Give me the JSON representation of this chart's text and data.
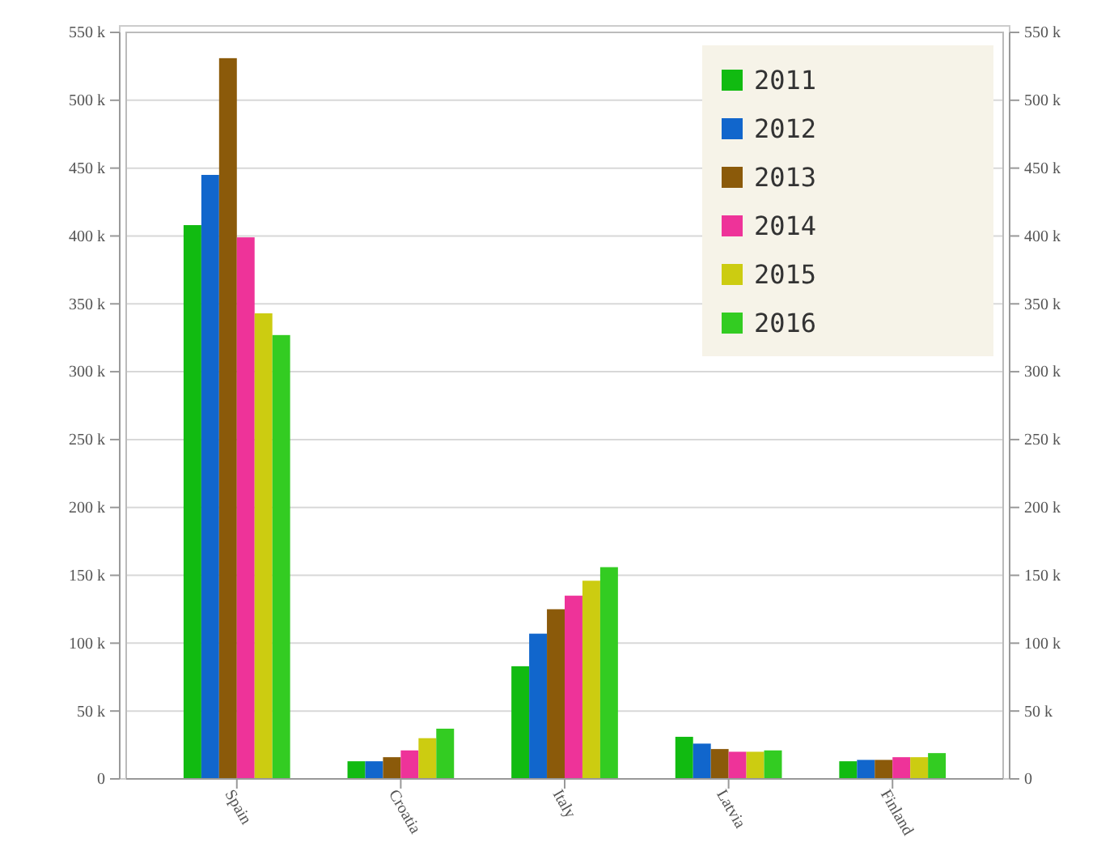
{
  "chart_data": {
    "type": "bar",
    "categories": [
      "Spain",
      "Croatia",
      "Italy",
      "Latvia",
      "Finland"
    ],
    "series": [
      {
        "name": "2011",
        "color": "#11bb11",
        "values": [
          408,
          13,
          83,
          31,
          13
        ]
      },
      {
        "name": "2012",
        "color": "#1166cc",
        "values": [
          445,
          13,
          107,
          26,
          14
        ]
      },
      {
        "name": "2013",
        "color": "#8b5a0a",
        "values": [
          531,
          16,
          125,
          22,
          14
        ]
      },
      {
        "name": "2014",
        "color": "#ee3399",
        "values": [
          399,
          21,
          135,
          20,
          16
        ]
      },
      {
        "name": "2015",
        "color": "#cccc11",
        "values": [
          343,
          30,
          146,
          20,
          16
        ]
      },
      {
        "name": "2016",
        "color": "#33cc22",
        "values": [
          327,
          37,
          156,
          21,
          19
        ]
      }
    ],
    "ylim": [
      0,
      550
    ],
    "yticks": [
      {
        "value": 0,
        "label": "0"
      },
      {
        "value": 50,
        "label": "50 k"
      },
      {
        "value": 100,
        "label": "100 k"
      },
      {
        "value": 150,
        "label": "150 k"
      },
      {
        "value": 200,
        "label": "200 k"
      },
      {
        "value": 250,
        "label": "250 k"
      },
      {
        "value": 300,
        "label": "300 k"
      },
      {
        "value": 350,
        "label": "350 k"
      },
      {
        "value": 400,
        "label": "400 k"
      },
      {
        "value": 450,
        "label": "450 k"
      },
      {
        "value": 500,
        "label": "500 k"
      },
      {
        "value": 550,
        "label": "550 k"
      }
    ],
    "y2lim": [
      0,
      550
    ],
    "y2ticks": [
      {
        "value": 0,
        "label": "0"
      },
      {
        "value": 50,
        "label": "50 k"
      },
      {
        "value": 100,
        "label": "100 k"
      },
      {
        "value": 150,
        "label": "150 k"
      },
      {
        "value": 200,
        "label": "200 k"
      },
      {
        "value": 250,
        "label": "250 k"
      },
      {
        "value": 300,
        "label": "300 k"
      },
      {
        "value": 350,
        "label": "350 k"
      },
      {
        "value": 400,
        "label": "400 k"
      },
      {
        "value": 450,
        "label": "450 k"
      },
      {
        "value": 500,
        "label": "500 k"
      },
      {
        "value": 550,
        "label": "550 k"
      }
    ],
    "grid": "y",
    "legend": "top right"
  }
}
